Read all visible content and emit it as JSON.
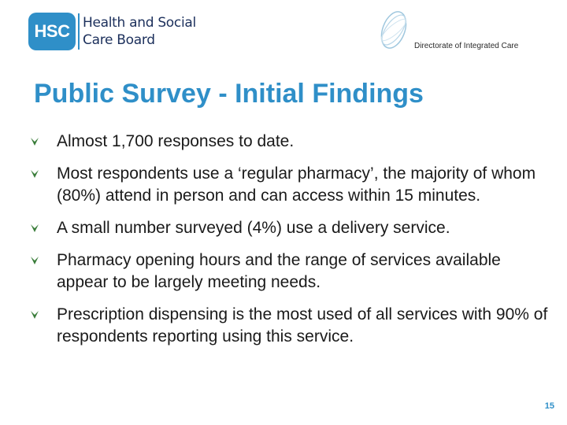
{
  "header": {
    "hsc_logo": {
      "badge": "HSC",
      "line1": "Health and Social",
      "line2": "Care Board"
    },
    "dic_logo": {
      "text": "Directorate of Integrated Care"
    }
  },
  "title": "Public Survey - Initial Findings",
  "bullets": [
    {
      "text": "Almost 1,700 responses to date."
    },
    {
      "text": "Most respondents use a ‘regular pharmacy’, the majority of whom (80%) attend in person and can access within 15 minutes."
    },
    {
      "text": "A small number surveyed (4%) use a delivery service."
    },
    {
      "text": "Pharmacy opening hours and the range of services available appear to be largely meeting needs."
    },
    {
      "text": "Prescription dispensing is the most used of all services with 90% of respondents reporting using this service."
    }
  ],
  "page_number": "15",
  "colors": {
    "accent": "#2f8fc8",
    "logo_text": "#1b2f5b",
    "bullet_icon": "#3a7d3a"
  }
}
